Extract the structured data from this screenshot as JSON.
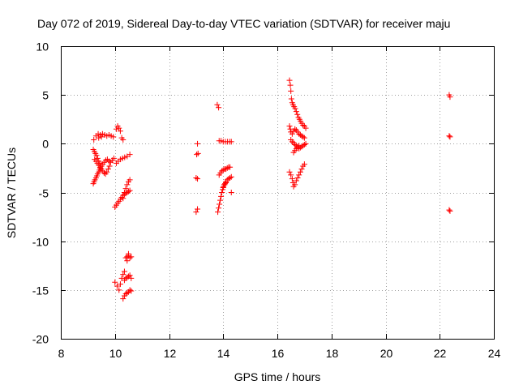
{
  "chart_data": {
    "type": "scatter",
    "title": "Day 072 of 2019, Sidereal Day-to-day VTEC variation (SDTVAR) for receiver maju",
    "xlabel": "GPS time / hours",
    "ylabel": "SDTVAR / TECUs",
    "xlim": [
      8,
      24
    ],
    "ylim": [
      -20,
      10
    ],
    "xticks": [
      8,
      10,
      12,
      14,
      16,
      18,
      20,
      22,
      24
    ],
    "yticks": [
      -20,
      -15,
      -10,
      -5,
      0,
      5,
      10
    ],
    "grid": true,
    "marker": "plus",
    "color": "#ff0000",
    "series": [
      {
        "name": "SDTVAR",
        "points": [
          [
            9.2,
            -4.1
          ],
          [
            9.23,
            -3.9
          ],
          [
            9.26,
            -3.7
          ],
          [
            9.3,
            -3.5
          ],
          [
            9.33,
            -3.3
          ],
          [
            9.36,
            -3.1
          ],
          [
            9.4,
            -2.9
          ],
          [
            9.43,
            -2.7
          ],
          [
            9.46,
            -2.5
          ],
          [
            9.5,
            -2.3
          ],
          [
            9.55,
            -2.1
          ],
          [
            9.6,
            -1.9
          ],
          [
            9.66,
            -1.7
          ],
          [
            9.72,
            -1.6
          ],
          [
            9.78,
            -1.8
          ],
          [
            9.84,
            -1.9
          ],
          [
            9.9,
            -1.7
          ],
          [
            9.96,
            -1.5
          ],
          [
            9.25,
            -1.6
          ],
          [
            9.3,
            -1.8
          ],
          [
            9.35,
            -2.0
          ],
          [
            9.4,
            -2.2
          ],
          [
            9.45,
            -2.4
          ],
          [
            9.5,
            -2.6
          ],
          [
            9.55,
            -2.8
          ],
          [
            9.6,
            -3.0
          ],
          [
            9.65,
            -3.1
          ],
          [
            9.7,
            -2.9
          ],
          [
            9.75,
            -2.6
          ],
          [
            9.8,
            -2.3
          ],
          [
            9.2,
            -0.6
          ],
          [
            9.24,
            -0.8
          ],
          [
            9.28,
            -1.0
          ],
          [
            9.32,
            -1.2
          ],
          [
            9.36,
            -1.5
          ],
          [
            9.4,
            -1.8
          ],
          [
            9.44,
            -2.0
          ],
          [
            9.22,
            0.4
          ],
          [
            9.3,
            0.8
          ],
          [
            9.38,
            1.0
          ],
          [
            9.46,
            0.9
          ],
          [
            9.54,
            1.0
          ],
          [
            9.62,
            0.9
          ],
          [
            9.7,
            0.8
          ],
          [
            9.78,
            0.9
          ],
          [
            9.86,
            0.8
          ],
          [
            9.94,
            0.7
          ],
          [
            9.4,
            0.6
          ],
          [
            9.5,
            0.7
          ],
          [
            10.05,
            1.5
          ],
          [
            10.1,
            1.8
          ],
          [
            10.15,
            1.6
          ],
          [
            10.2,
            1.3
          ],
          [
            10.25,
            0.6
          ],
          [
            10.3,
            0.4
          ],
          [
            10.05,
            -2.0
          ],
          [
            10.12,
            -1.8
          ],
          [
            10.2,
            -1.6
          ],
          [
            10.28,
            -1.5
          ],
          [
            10.36,
            -1.4
          ],
          [
            10.45,
            -1.3
          ],
          [
            10.55,
            -1.1
          ],
          [
            10.0,
            -6.5
          ],
          [
            10.05,
            -6.3
          ],
          [
            10.1,
            -6.1
          ],
          [
            10.15,
            -5.9
          ],
          [
            10.2,
            -5.7
          ],
          [
            10.25,
            -5.5
          ],
          [
            10.3,
            -5.3
          ],
          [
            10.35,
            -5.2
          ],
          [
            10.4,
            -5.1
          ],
          [
            10.45,
            -5.0
          ],
          [
            10.5,
            -4.9
          ],
          [
            10.55,
            -4.8
          ],
          [
            10.3,
            -5.6
          ],
          [
            10.35,
            -5.0
          ],
          [
            10.4,
            -4.6
          ],
          [
            10.45,
            -4.2
          ],
          [
            10.5,
            -3.9
          ],
          [
            10.55,
            -3.7
          ],
          [
            10.0,
            -14.2
          ],
          [
            10.08,
            -14.6
          ],
          [
            10.15,
            -15.0
          ],
          [
            10.2,
            -14.4
          ],
          [
            10.25,
            -13.8
          ],
          [
            10.3,
            -13.4
          ],
          [
            10.35,
            -13.1
          ],
          [
            10.3,
            -15.9
          ],
          [
            10.35,
            -15.6
          ],
          [
            10.4,
            -15.4
          ],
          [
            10.45,
            -15.3
          ],
          [
            10.5,
            -15.2
          ],
          [
            10.55,
            -15.0
          ],
          [
            10.6,
            -15.1
          ],
          [
            10.35,
            -14.0
          ],
          [
            10.4,
            -13.8
          ],
          [
            10.45,
            -13.7
          ],
          [
            10.5,
            -13.6
          ],
          [
            10.55,
            -13.5
          ],
          [
            10.6,
            -13.8
          ],
          [
            10.4,
            -11.7
          ],
          [
            10.45,
            -11.6
          ],
          [
            10.5,
            -11.5
          ],
          [
            10.55,
            -11.7
          ],
          [
            10.6,
            -11.6
          ],
          [
            10.45,
            -12.0
          ],
          [
            10.5,
            -11.3
          ],
          [
            13.0,
            -7.0
          ],
          [
            13.05,
            -6.7
          ],
          [
            13.0,
            -3.5
          ],
          [
            13.05,
            -3.6
          ],
          [
            13.02,
            -1.1
          ],
          [
            13.07,
            -1.0
          ],
          [
            13.05,
            0.0
          ],
          [
            13.78,
            4.0
          ],
          [
            13.83,
            3.7
          ],
          [
            13.8,
            -7.0
          ],
          [
            13.83,
            -6.6
          ],
          [
            13.86,
            -6.2
          ],
          [
            13.89,
            -5.8
          ],
          [
            13.92,
            -5.4
          ],
          [
            13.95,
            -5.0
          ],
          [
            13.98,
            -4.7
          ],
          [
            14.01,
            -4.4
          ],
          [
            14.04,
            -4.2
          ],
          [
            14.07,
            -4.1
          ],
          [
            14.1,
            -4.0
          ],
          [
            13.85,
            -3.2
          ],
          [
            13.9,
            -3.0
          ],
          [
            13.95,
            -2.8
          ],
          [
            14.0,
            -2.7
          ],
          [
            14.05,
            -2.6
          ],
          [
            14.1,
            -2.6
          ],
          [
            14.15,
            -2.5
          ],
          [
            14.2,
            -2.4
          ],
          [
            14.25,
            -2.4
          ],
          [
            14.0,
            -4.5
          ],
          [
            14.05,
            -4.2
          ],
          [
            14.1,
            -3.9
          ],
          [
            14.15,
            -3.7
          ],
          [
            14.2,
            -3.6
          ],
          [
            14.25,
            -3.5
          ],
          [
            14.3,
            -3.4
          ],
          [
            14.3,
            -5.0
          ],
          [
            13.85,
            0.3
          ],
          [
            13.92,
            0.3
          ],
          [
            14.0,
            0.2
          ],
          [
            14.08,
            0.2
          ],
          [
            14.16,
            0.2
          ],
          [
            14.24,
            0.2
          ],
          [
            14.3,
            0.2
          ],
          [
            16.45,
            6.5
          ],
          [
            16.48,
            6.0
          ],
          [
            16.5,
            5.4
          ],
          [
            16.52,
            4.6
          ],
          [
            16.55,
            4.2
          ],
          [
            16.58,
            4.0
          ],
          [
            16.62,
            3.8
          ],
          [
            16.66,
            3.6
          ],
          [
            16.7,
            3.3
          ],
          [
            16.74,
            3.0
          ],
          [
            16.78,
            2.7
          ],
          [
            16.82,
            2.5
          ],
          [
            16.86,
            2.3
          ],
          [
            16.9,
            2.1
          ],
          [
            16.95,
            1.9
          ],
          [
            17.0,
            1.8
          ],
          [
            17.05,
            1.6
          ],
          [
            16.45,
            1.8
          ],
          [
            16.48,
            1.5
          ],
          [
            16.5,
            1.2
          ],
          [
            16.55,
            1.0
          ],
          [
            16.6,
            1.3
          ],
          [
            16.65,
            1.5
          ],
          [
            16.7,
            1.4
          ],
          [
            16.75,
            1.2
          ],
          [
            16.8,
            1.0
          ],
          [
            16.85,
            0.9
          ],
          [
            16.9,
            0.8
          ],
          [
            16.95,
            0.7
          ],
          [
            17.0,
            0.6
          ],
          [
            16.5,
            0.4
          ],
          [
            16.55,
            0.2
          ],
          [
            16.6,
            0.1
          ],
          [
            16.65,
            -0.1
          ],
          [
            16.7,
            -0.2
          ],
          [
            16.75,
            -0.4
          ],
          [
            16.8,
            -0.5
          ],
          [
            16.85,
            -0.4
          ],
          [
            16.9,
            -0.3
          ],
          [
            16.95,
            -0.2
          ],
          [
            17.0,
            -0.1
          ],
          [
            17.05,
            0.0
          ],
          [
            16.45,
            -2.9
          ],
          [
            16.5,
            -3.2
          ],
          [
            16.55,
            -3.6
          ],
          [
            16.58,
            -4.0
          ],
          [
            16.6,
            -4.4
          ],
          [
            16.65,
            -4.2
          ],
          [
            16.7,
            -3.8
          ],
          [
            16.75,
            -3.5
          ],
          [
            16.8,
            -3.2
          ],
          [
            16.85,
            -2.9
          ],
          [
            16.9,
            -2.6
          ],
          [
            16.95,
            -2.3
          ],
          [
            17.0,
            -2.1
          ],
          [
            16.6,
            -0.9
          ],
          [
            16.65,
            -0.7
          ],
          [
            16.7,
            -0.5
          ],
          [
            16.75,
            -0.3
          ],
          [
            16.8,
            -0.2
          ],
          [
            22.35,
            5.0
          ],
          [
            22.38,
            4.8
          ],
          [
            22.35,
            0.8
          ],
          [
            22.38,
            0.7
          ],
          [
            22.35,
            -6.8
          ],
          [
            22.38,
            -6.9
          ]
        ]
      }
    ]
  }
}
